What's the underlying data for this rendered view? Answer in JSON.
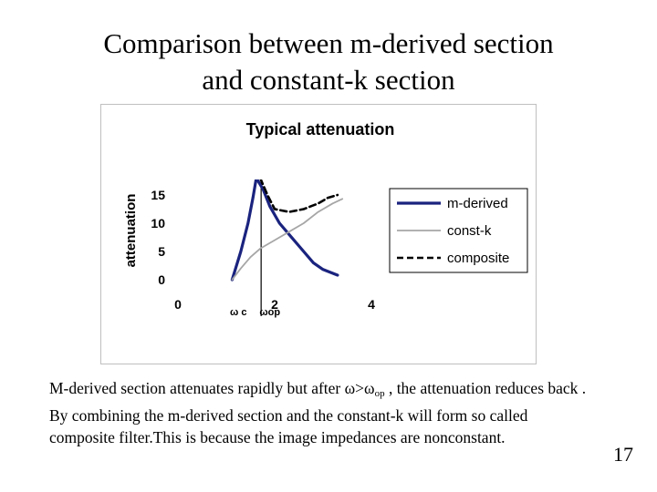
{
  "slide": {
    "title_line1": "Comparison between m-derived section",
    "title_line2": "and constant-k section",
    "body_part1": "M-derived  section attenuates rapidly but after ",
    "body_omega": "ω>ω",
    "body_sub": "op",
    "body_part2": " , the attenuation reduces back . By combining the m-derived section and the constant-k will form so called composite filter.This is because the image impedances are nonconstant.",
    "page_number": "17"
  },
  "chart_data": {
    "type": "line",
    "title": "Typical attenuation",
    "xlabel": "",
    "ylabel": "attenuation",
    "xlim": [
      0,
      4
    ],
    "ylim": [
      0,
      15
    ],
    "x_ticks": [
      "0",
      "2",
      "4"
    ],
    "y_ticks": [
      "0",
      "5",
      "10",
      "15"
    ],
    "x_ticks_values": [
      0,
      2,
      4
    ],
    "y_ticks_values": [
      0,
      5,
      10,
      15
    ],
    "x_annotations": [
      {
        "label": "ω c",
        "x": 1.25
      },
      {
        "label": "ωop",
        "x": 1.9
      }
    ],
    "vline_x": 1.72,
    "legend_position": "right",
    "colors": {
      "m-derived": "#1a237e",
      "const-k": "#a6a6a6",
      "composite": "#000000"
    },
    "series": [
      {
        "name": "m-derived",
        "style": "solid-thick",
        "points": [
          [
            1.12,
            0
          ],
          [
            1.3,
            5
          ],
          [
            1.45,
            10
          ],
          [
            1.55,
            14.5
          ],
          [
            1.62,
            18
          ],
          [
            1.76,
            16
          ],
          [
            1.9,
            13
          ],
          [
            2.1,
            10
          ],
          [
            2.3,
            8
          ],
          [
            2.55,
            5.5
          ],
          [
            2.8,
            3
          ],
          [
            3.0,
            1.8
          ],
          [
            3.3,
            0.8
          ]
        ]
      },
      {
        "name": "const-k",
        "style": "solid-thin",
        "points": [
          [
            1.12,
            0
          ],
          [
            1.3,
            2
          ],
          [
            1.5,
            4
          ],
          [
            1.7,
            5.5
          ],
          [
            2.0,
            7
          ],
          [
            2.3,
            8.5
          ],
          [
            2.6,
            10
          ],
          [
            2.9,
            12
          ],
          [
            3.2,
            13.5
          ],
          [
            3.4,
            14.3
          ]
        ]
      },
      {
        "name": "composite",
        "style": "dashed",
        "points": [
          [
            1.7,
            18
          ],
          [
            1.85,
            15
          ],
          [
            2.0,
            12.5
          ],
          [
            2.3,
            12
          ],
          [
            2.6,
            12.5
          ],
          [
            2.9,
            13.5
          ],
          [
            3.1,
            14.5
          ],
          [
            3.3,
            15
          ]
        ]
      }
    ]
  }
}
